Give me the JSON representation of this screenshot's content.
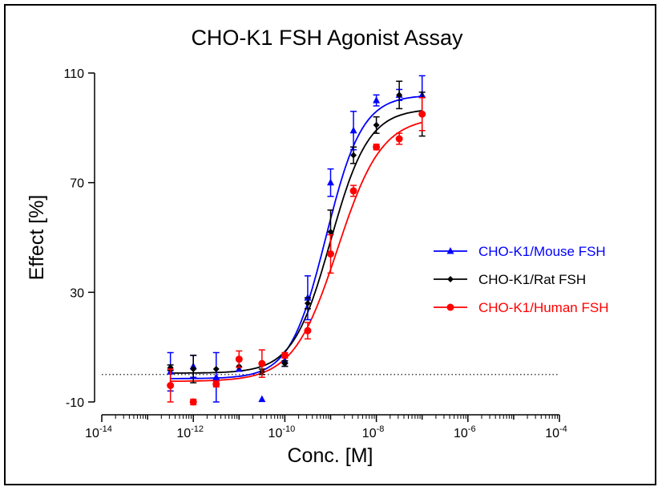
{
  "chart_data": {
    "type": "scatter",
    "title": "CHO-K1 FSH Agonist Assay",
    "xlabel": "Conc. [M]",
    "ylabel": "Effect [%]",
    "xscale": "log10",
    "xlim_log": [
      -14,
      -4
    ],
    "x_ticks_log": [
      -14,
      -12,
      -10,
      -8,
      -6,
      -4
    ],
    "x_tick_base": "10",
    "ylim": [
      -10,
      110
    ],
    "y_ticks": [
      -10,
      30,
      70,
      110
    ],
    "reference_line_y": 0,
    "legend_position": "right",
    "x_log": [
      -12.5,
      -12,
      -11.5,
      -11,
      -10.5,
      -10,
      -9.5,
      -9,
      -8.5,
      -8,
      -7.5,
      -7
    ],
    "series": [
      {
        "name": "CHO-K1/Mouse FSH",
        "color": "#0000ff",
        "marker": "triangle",
        "values": [
          1,
          3,
          -1,
          2,
          -9,
          5,
          28,
          70,
          89,
          100,
          102,
          102
        ],
        "errors": [
          7,
          4,
          9,
          0,
          0,
          2,
          8,
          5,
          7,
          2,
          2,
          7
        ],
        "fit": {
          "bottom": -1.5,
          "top": 102,
          "logEC50": -9.1,
          "hill": 1.1
        }
      },
      {
        "name": "CHO-K1/Rat FSH",
        "color": "#000000",
        "marker": "diamond",
        "values": [
          2.5,
          2,
          2,
          3,
          1,
          4,
          26,
          52,
          80,
          91,
          102,
          95
        ],
        "errors": [
          1,
          5,
          0,
          0,
          1,
          1,
          2,
          8,
          3,
          3,
          5,
          8
        ],
        "fit": {
          "bottom": 0.5,
          "top": 97,
          "logEC50": -9.0,
          "hill": 1.05
        }
      },
      {
        "name": "CHO-K1/Human FSH",
        "color": "#ff0000",
        "marker": "circle",
        "values": [
          -4,
          -10,
          -3.5,
          5.6,
          4,
          7,
          16,
          44,
          67,
          83,
          86,
          95
        ],
        "errors": [
          6,
          1,
          1,
          3,
          5,
          1,
          3,
          7,
          2,
          1,
          2,
          6
        ],
        "fit": {
          "bottom": -2.5,
          "top": 94,
          "logEC50": -8.85,
          "hill": 0.9
        }
      }
    ]
  }
}
